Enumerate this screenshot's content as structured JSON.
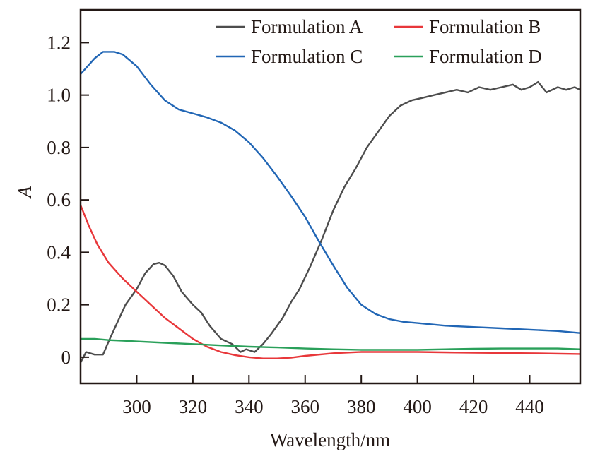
{
  "chart_data": {
    "type": "line",
    "title": "",
    "xlabel": "Wavelength/nm",
    "ylabel": "A",
    "xlim": [
      280,
      458
    ],
    "ylim": [
      -0.1,
      1.325
    ],
    "xticks": [
      300,
      320,
      340,
      360,
      380,
      400,
      420,
      440
    ],
    "yticks": [
      0,
      0.2,
      0.4,
      0.6,
      0.8,
      1.0,
      1.2
    ],
    "ytick_labels": [
      "0",
      "0.2",
      "0.4",
      "0.6",
      "0.8",
      "1.0",
      "1.2"
    ],
    "xtick_labels": [
      "300",
      "320",
      "340",
      "360",
      "380",
      "400",
      "420",
      "440"
    ],
    "grid": false,
    "legend_position": "top-right",
    "series": [
      {
        "name": "Formulation A",
        "color": "#4d4d4d",
        "x": [
          280,
          282,
          285,
          288,
          290,
          293,
          296,
          300,
          303,
          306,
          308,
          310,
          313,
          316,
          320,
          323,
          326,
          330,
          334,
          337,
          339,
          342,
          345,
          348,
          352,
          355,
          358,
          362,
          366,
          370,
          374,
          378,
          382,
          386,
          390,
          394,
          398,
          402,
          406,
          410,
          414,
          418,
          422,
          426,
          430,
          434,
          437,
          440,
          443,
          446,
          450,
          453,
          456,
          458
        ],
        "y": [
          -0.02,
          0.02,
          0.01,
          0.01,
          0.06,
          0.13,
          0.2,
          0.26,
          0.32,
          0.355,
          0.36,
          0.35,
          0.31,
          0.25,
          0.2,
          0.17,
          0.12,
          0.07,
          0.05,
          0.02,
          0.03,
          0.02,
          0.05,
          0.09,
          0.15,
          0.21,
          0.26,
          0.35,
          0.45,
          0.56,
          0.65,
          0.72,
          0.8,
          0.86,
          0.92,
          0.96,
          0.98,
          0.99,
          1.0,
          1.01,
          1.02,
          1.01,
          1.03,
          1.02,
          1.03,
          1.04,
          1.02,
          1.03,
          1.05,
          1.01,
          1.03,
          1.02,
          1.03,
          1.02
        ]
      },
      {
        "name": "Formulation B",
        "color": "#e8373a",
        "x": [
          280,
          283,
          286,
          290,
          295,
          300,
          305,
          310,
          315,
          320,
          325,
          330,
          335,
          340,
          345,
          350,
          355,
          360,
          370,
          380,
          400,
          420,
          440,
          458
        ],
        "y": [
          0.58,
          0.5,
          0.43,
          0.36,
          0.3,
          0.25,
          0.2,
          0.15,
          0.11,
          0.07,
          0.04,
          0.02,
          0.008,
          0.0,
          -0.005,
          -0.005,
          -0.002,
          0.005,
          0.015,
          0.02,
          0.02,
          0.017,
          0.015,
          0.012
        ]
      },
      {
        "name": "Formulation C",
        "color": "#2166b5",
        "x": [
          280,
          285,
          288,
          292,
          295,
          300,
          305,
          310,
          315,
          320,
          325,
          330,
          335,
          340,
          345,
          350,
          355,
          360,
          365,
          370,
          375,
          380,
          385,
          390,
          395,
          400,
          410,
          420,
          430,
          440,
          450,
          458
        ],
        "y": [
          1.08,
          1.14,
          1.165,
          1.165,
          1.155,
          1.11,
          1.04,
          0.98,
          0.945,
          0.93,
          0.915,
          0.895,
          0.865,
          0.82,
          0.76,
          0.69,
          0.615,
          0.535,
          0.44,
          0.35,
          0.265,
          0.2,
          0.165,
          0.145,
          0.135,
          0.13,
          0.12,
          0.115,
          0.11,
          0.105,
          0.1,
          0.092
        ]
      },
      {
        "name": "Formulation D",
        "color": "#2aa05a",
        "x": [
          280,
          285,
          290,
          295,
          300,
          310,
          320,
          330,
          340,
          350,
          360,
          370,
          380,
          390,
          400,
          410,
          420,
          430,
          440,
          450,
          458
        ],
        "y": [
          0.07,
          0.07,
          0.065,
          0.063,
          0.06,
          0.055,
          0.05,
          0.045,
          0.04,
          0.037,
          0.033,
          0.03,
          0.028,
          0.028,
          0.028,
          0.03,
          0.032,
          0.033,
          0.033,
          0.033,
          0.03
        ]
      }
    ]
  }
}
